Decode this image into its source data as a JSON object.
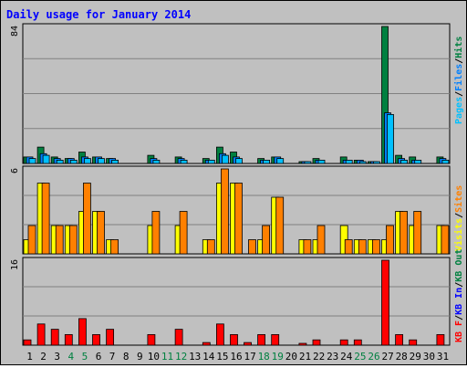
{
  "title": "Daily usage for January 2014",
  "colors": {
    "background": "#c0c0c0",
    "title": "#0000ff",
    "hits": "#008040",
    "files": "#0080ff",
    "pages": "#00c0ff",
    "visits": "#ffff00",
    "sites": "#ff8000",
    "kb_in": "#0000ff",
    "kb_out": "#008040",
    "kb_f": "#ff0000",
    "weekend_label": "#008040"
  },
  "chart_data": {
    "type": "bar",
    "title": "Daily usage for January 2014",
    "categories": [
      "1",
      "2",
      "3",
      "4",
      "5",
      "6",
      "7",
      "8",
      "9",
      "10",
      "11",
      "12",
      "13",
      "14",
      "15",
      "16",
      "17",
      "18",
      "19",
      "20",
      "21",
      "22",
      "23",
      "24",
      "25",
      "26",
      "27",
      "28",
      "29",
      "30",
      "31"
    ],
    "weekend_days": [
      "4",
      "5",
      "11",
      "12",
      "18",
      "19",
      "25",
      "26"
    ],
    "panels": [
      {
        "name": "hits-files-pages",
        "ymax_label": "84",
        "ymax": 84,
        "legend": [
          "Pages",
          "/",
          "Files",
          "/",
          "Hits"
        ],
        "series": [
          {
            "name": "Hits",
            "values": [
              4,
              10,
              4,
              3,
              7,
              4,
              3,
              0,
              0,
              5,
              0,
              4,
              0,
              3,
              10,
              7,
              0,
              3,
              4,
              0,
              1,
              3,
              0,
              4,
              2,
              1,
              84,
              5,
              4,
              0,
              4
            ]
          },
          {
            "name": "Files",
            "values": [
              4,
              6,
              3,
              3,
              4,
              4,
              3,
              0,
              0,
              3,
              0,
              3,
              0,
              2,
              6,
              4,
              0,
              2,
              4,
              0,
              1,
              2,
              0,
              2,
              2,
              1,
              31,
              3,
              2,
              0,
              3
            ]
          },
          {
            "name": "Pages",
            "values": [
              3,
              5,
              2,
              2,
              3,
              3,
              2,
              0,
              0,
              2,
              0,
              2,
              0,
              2,
              5,
              3,
              0,
              2,
              3,
              0,
              1,
              2,
              0,
              2,
              1,
              1,
              30,
              2,
              2,
              0,
              2
            ]
          }
        ]
      },
      {
        "name": "visits-sites",
        "ymax_label": "6",
        "ymax": 6,
        "legend": [
          "Visits",
          "/",
          "Sites"
        ],
        "series": [
          {
            "name": "Visits",
            "values": [
              1,
              5,
              2,
              2,
              3,
              3,
              1,
              0,
              0,
              2,
              0,
              2,
              0,
              1,
              5,
              5,
              0,
              1,
              4,
              0,
              1,
              1,
              0,
              2,
              1,
              1,
              1,
              3,
              2,
              0,
              2
            ]
          },
          {
            "name": "Sites",
            "values": [
              2,
              5,
              2,
              2,
              5,
              3,
              1,
              0,
              0,
              3,
              0,
              3,
              0,
              1,
              6,
              5,
              1,
              2,
              4,
              0,
              1,
              2,
              0,
              1,
              1,
              1,
              2,
              3,
              3,
              0,
              2
            ]
          }
        ]
      },
      {
        "name": "kbytes",
        "ymax_label": "16",
        "ymax": 16,
        "legend": [
          "KB F",
          "/",
          "KB In",
          "/",
          "KB Out"
        ],
        "series": [
          {
            "name": "KB F",
            "values": [
              1,
              4,
              3,
              2,
              5,
              2,
              3,
              0,
              0,
              2,
              0,
              3,
              0,
              0.5,
              4,
              2,
              0.5,
              2,
              2,
              0,
              0.3,
              1,
              0,
              1,
              1,
              0,
              16,
              2,
              1,
              0,
              2
            ]
          }
        ]
      }
    ]
  }
}
